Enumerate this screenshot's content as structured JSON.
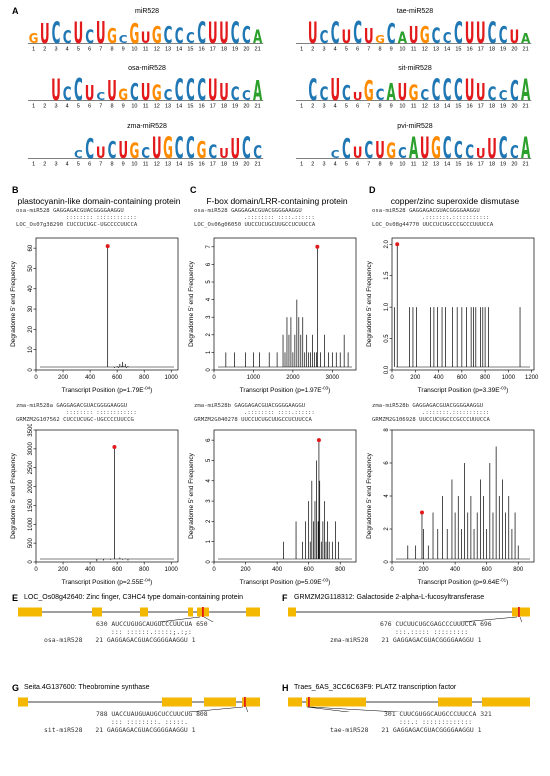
{
  "panel_letters": {
    "A": "A",
    "B": "B",
    "C": "C",
    "D": "D",
    "E": "E",
    "F": "F",
    "G": "G",
    "H": "H"
  },
  "logos": [
    {
      "title": "miR528",
      "seq": "GUCCUCUGCGUGCCCCUUCCA"
    },
    {
      "title": "tae-miR528",
      "seq": "UCCUCUGCAUGCCCUUCCUA"
    },
    {
      "title": "osa-miR528",
      "seq": "UCCUCUGCUGCCCCUUCCA"
    },
    {
      "title": "sit-miR528",
      "seq": "CCUCUGCAUGCCCCUUCCCA"
    },
    {
      "title": "zma-miR528",
      "seq": "CCUCUGCUGCCGCUUCC"
    },
    {
      "title": "pvi-miR528",
      "seq": "CCUCUGCAUGCCCUUCCA"
    }
  ],
  "logo_ticks": [
    "1",
    "2",
    "3",
    "4",
    "5",
    "6",
    "7",
    "8",
    "9",
    "10",
    "11",
    "12",
    "13",
    "14",
    "15",
    "16",
    "17",
    "18",
    "19",
    "20",
    "21"
  ],
  "logo_colors": {
    "A": "#2ca02c",
    "C": "#1f77b4",
    "G": "#ff8c00",
    "U": "#e31a1c"
  },
  "deg_panels": [
    {
      "title": "plastocyanin-like domain-containing protein",
      "align1": {
        "mirna_name": "osa-miR528",
        "mirna_seq": "GAGGAGACGUACGGGGAAGGU",
        "match": ":::::::: ::::::::::::",
        "target_name": "LOC_Os07g38290",
        "target_seq": "CUCCUCUGC-UGCCCCUUCCA"
      },
      "align2": {
        "mirna_name": "zma-miR528a",
        "mirna_seq": "GAGGAGACGUACGGGGAAGGU",
        "match": ":::::::: ::::::::::::",
        "target_name": "GRMZM2G107562",
        "target_seq": "CUCCUCUGC-UGCCCCUUCCG"
      }
    },
    {
      "title": "F-box domain/LRR-containing protein",
      "align1": {
        "mirna_name": "osa-miR528",
        "mirna_seq": "GAGGAGACGUACGGGGAAGGU",
        "match": ".:::::::: ::::.::::::",
        "target_name": "LOC_Os06g06050",
        "target_seq": "UUCCUCUGCUUGCCUCUUCCA"
      },
      "align2": {
        "mirna_name": "zma-miR528b",
        "mirna_seq": "GAGGAGACGUACGGGGAAGGU",
        "match": ".:::::::: ::::.::::::",
        "target_name": "GRMZM2G040278",
        "target_seq": "UUCCUCUGCUUGCCUCUUCCA"
      }
    },
    {
      "title": "copper/zinc superoxide dismutase",
      "align1": {
        "mirna_name": "osa-miR528",
        "mirna_seq": "GAGGAGACGUACGGGGAAGGU",
        "match": ".:::::::.:::::::::::",
        "target_name": "LOC_Os08g44770",
        "target_seq": "UUCCUCUGCCCGCCCUUUCCA"
      },
      "align2": {
        "mirna_name": "zma-miR528b",
        "mirna_seq": "GAGGAGACGUACGGGGAAGGU",
        "match": ".:::::::.:::::::::::",
        "target_name": "GRMZM2G106928",
        "target_seq": "UUCCUCUGCCCGCCCUUUCCA"
      }
    }
  ],
  "chart_data": [
    {
      "type": "bar",
      "panel": "B-top",
      "xlabel": "Transcript Position",
      "pvalue": "(p=1.79E",
      "pexp": "-04",
      "pend": ")",
      "ylabel": "Degradome 5' end Frequency",
      "xlim": [
        0,
        1050
      ],
      "xticks": [
        "0",
        "200",
        "400",
        "600",
        "800",
        "1000"
      ],
      "ylim": [
        0,
        65
      ],
      "yticks": [
        "0",
        "10",
        "20",
        "30",
        "40",
        "50",
        "60"
      ],
      "x": [
        580,
        600,
        610,
        620,
        630,
        640,
        650,
        660,
        670,
        680,
        530
      ],
      "y": [
        1,
        2,
        1,
        3,
        2,
        4,
        2,
        3,
        1,
        2,
        61
      ],
      "highlight_x": 530,
      "highlight_y": 61
    },
    {
      "type": "bar",
      "panel": "C-top",
      "xlabel": "Transcript Position",
      "pvalue": "(p=1.97E",
      "pexp": "-03",
      "pend": ")",
      "ylabel": "Degradome 5' end Frequency",
      "xlim": [
        0,
        3600
      ],
      "xticks": [
        "0",
        "1000",
        "2000",
        "3000"
      ],
      "ylim": [
        0,
        7.5
      ],
      "yticks": [
        "0",
        "1",
        "2",
        "3",
        "4",
        "5",
        "6",
        "7"
      ],
      "x": [
        300,
        520,
        800,
        1000,
        1150,
        1400,
        1600,
        1750,
        1800,
        1850,
        1900,
        1950,
        2000,
        2050,
        2100,
        2150,
        2200,
        2250,
        2300,
        2350,
        2400,
        2450,
        2500,
        2550,
        2600,
        2700,
        2800,
        2900,
        3000,
        3100,
        3200,
        3300,
        3400,
        2620
      ],
      "y": [
        1,
        1,
        1,
        1,
        1,
        1,
        1,
        2,
        1,
        3,
        2,
        3,
        1,
        2,
        4,
        3,
        2,
        3,
        1,
        2,
        1,
        1,
        2,
        1,
        1,
        1,
        2,
        1,
        1,
        1,
        1,
        2,
        1,
        7
      ],
      "highlight_x": 2620,
      "highlight_y": 7
    },
    {
      "type": "bar",
      "panel": "D-top",
      "xlabel": "Transcript Position",
      "pvalue": "(p=3.39E",
      "pexp": "-03",
      "pend": ")",
      "ylabel": "Degradome 5' end Frequency",
      "xlim": [
        0,
        1220
      ],
      "xticks": [
        "0",
        "200",
        "400",
        "600",
        "800",
        "1000",
        "1200"
      ],
      "ylim": [
        0,
        2.1
      ],
      "yticks": [
        "0.0",
        "0.5",
        "1.0",
        "1.5",
        "2.0"
      ],
      "x": [
        20,
        150,
        180,
        210,
        330,
        360,
        390,
        430,
        460,
        520,
        560,
        600,
        640,
        680,
        700,
        720,
        760,
        780,
        800,
        830,
        1100,
        45
      ],
      "y": [
        1,
        1,
        1,
        1,
        1,
        1,
        1,
        1,
        1,
        1,
        1,
        1,
        1,
        1,
        1,
        1,
        1,
        1,
        1,
        1,
        1,
        2
      ],
      "highlight_x": 45,
      "highlight_y": 2
    },
    {
      "type": "bar",
      "panel": "B-bottom",
      "xlabel": "Transcript Position",
      "pvalue": "(p=2.55E",
      "pexp": "-04",
      "pend": ")",
      "ylabel": "Degradome 5' end Frequency",
      "xlim": [
        0,
        1050
      ],
      "xticks": [
        "0",
        "200",
        "400",
        "600",
        "800",
        "1000"
      ],
      "ylim": [
        0,
        3500
      ],
      "yticks": [
        "0",
        "500",
        "1000",
        "1500",
        "2000",
        "2500",
        "3000",
        "3500"
      ],
      "x": [
        450,
        500,
        550,
        600,
        620,
        640,
        660,
        680,
        580
      ],
      "y": [
        20,
        40,
        60,
        80,
        120,
        60,
        90,
        40,
        3050
      ],
      "highlight_x": 580,
      "highlight_y": 3050
    },
    {
      "type": "bar",
      "panel": "C-bottom",
      "xlabel": "Transcript Position",
      "pvalue": "(p=5.09E",
      "pexp": "-03",
      "pend": ")",
      "ylabel": "Degradome 5' end Frequency",
      "xlim": [
        0,
        900
      ],
      "xticks": [
        "0",
        "200",
        "400",
        "600",
        "800"
      ],
      "ylim": [
        0,
        6.5
      ],
      "yticks": [
        "0",
        "1",
        "2",
        "3",
        "4",
        "5",
        "6"
      ],
      "x": [
        440,
        520,
        560,
        580,
        600,
        610,
        620,
        630,
        640,
        650,
        660,
        670,
        680,
        690,
        700,
        710,
        720,
        730,
        750,
        770,
        790,
        665
      ],
      "y": [
        1,
        2,
        1,
        2,
        3,
        1,
        4,
        2,
        3,
        5,
        2,
        4,
        1,
        2,
        3,
        1,
        2,
        1,
        1,
        2,
        1,
        6
      ],
      "highlight_x": 665,
      "highlight_y": 6
    },
    {
      "type": "bar",
      "panel": "D-bottom",
      "xlabel": "Transcript Position",
      "pvalue": "(p=9.64E",
      "pexp": "-01",
      "pend": ")",
      "ylabel": "Degradome 5' end Frequency",
      "xlim": [
        0,
        900
      ],
      "xticks": [
        "0",
        "200",
        "400",
        "600",
        "800"
      ],
      "ylim": [
        0,
        8
      ],
      "yticks": [
        "0",
        "2",
        "4",
        "6",
        "8"
      ],
      "x": [
        100,
        150,
        200,
        230,
        260,
        290,
        320,
        350,
        380,
        400,
        420,
        440,
        460,
        480,
        500,
        520,
        540,
        560,
        580,
        600,
        620,
        640,
        660,
        680,
        700,
        720,
        740,
        760,
        780,
        800,
        190
      ],
      "y": [
        1,
        1,
        2,
        1,
        3,
        2,
        4,
        2,
        5,
        3,
        4,
        2,
        6,
        3,
        4,
        2,
        3,
        5,
        4,
        2,
        6,
        3,
        7,
        4,
        5,
        3,
        4,
        2,
        3,
        1,
        3
      ],
      "highlight_x": 190,
      "highlight_y": 3
    }
  ],
  "genes": [
    {
      "title": "LOC_Os08g42640: Zinc finger, C3HC4 type domain-containing protein",
      "pos_start": "630",
      "target_seq": "AUCCUGUGCAUGUCCCUUCUA",
      "pos_end": "650",
      "match": "::: ::::::.:::::;.:;:",
      "mirna_pos_start": "21",
      "mirna_name": "osa-miR528",
      "mirna_seq": "GAGGAGACGUACGGGGAAGGU",
      "mirna_pos_end": "1"
    },
    {
      "title": "GRMZM2G118312: Galactoside 2-alpha-L-fucosyltransferase",
      "pos_start": "676",
      "target_seq": "CUCUUCUGCGAGCCCUUUCCA",
      "pos_end": "696",
      "match": ":::.::::: :::::::::",
      "mirna_pos_start": "21",
      "mirna_name": "zma-miR528",
      "mirna_seq": "GAGGAGACGUACGGGGAAGGU",
      "mirna_pos_end": "1"
    },
    {
      "title": "Seita.4G137600: Theobromine synthase",
      "pos_start": "788",
      "target_seq": "UACCUAUGUAUGCUCCUUCUG",
      "pos_end": "808",
      "match": "::: ::::::::. :::::.",
      "mirna_pos_start": "21",
      "mirna_name": "sit-miR528",
      "mirna_seq": "GAGGAGACGUACGGGGAAGGU",
      "mirna_pos_end": "1"
    },
    {
      "title": "Traes_6AS_3CC6C63F9: PLATZ transcription factor",
      "pos_start": "301",
      "target_seq": "CUUCGUGGCAUGCCCUUCCA",
      "pos_end": "321",
      "match": ":::.: :::::::::::::",
      "mirna_pos_start": "21",
      "mirna_name": "tae-miR528",
      "mirna_seq": "GAGGAGACGUACGGGGAAGGU",
      "mirna_pos_end": "1"
    }
  ],
  "colors": {
    "exon": "#f5b800",
    "site": "#e31a1c",
    "peak": "#e31a1c"
  }
}
